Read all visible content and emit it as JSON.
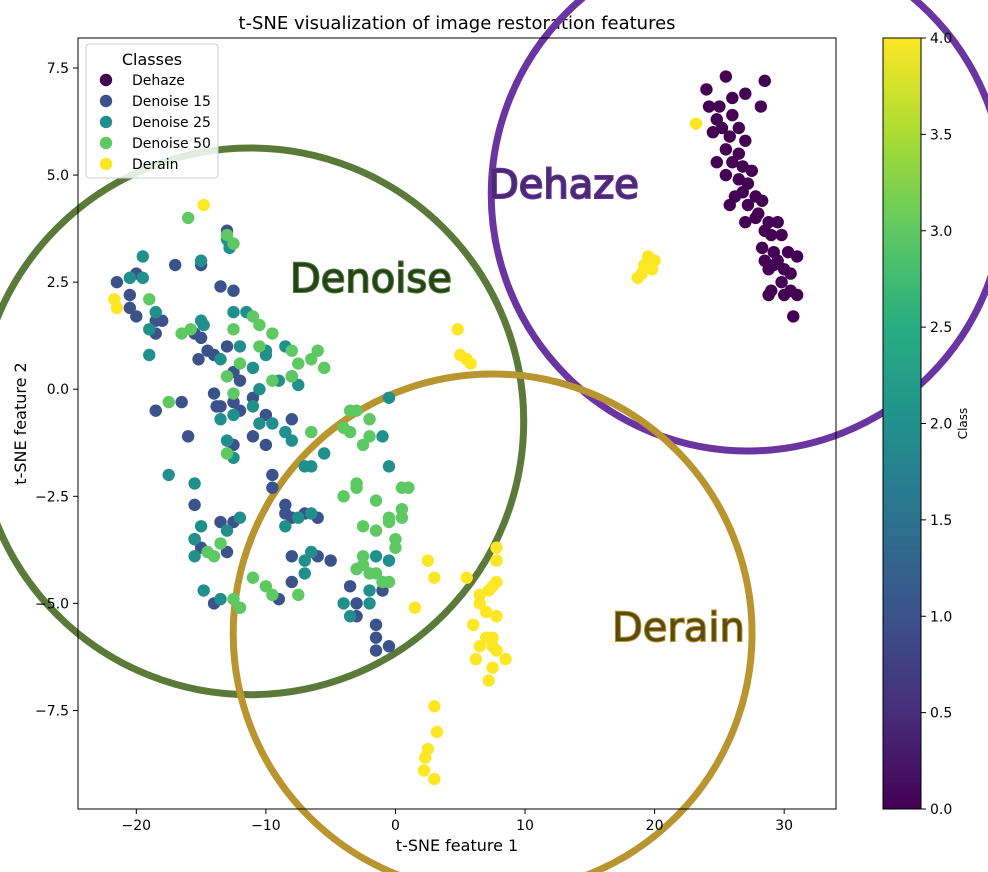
{
  "chart_data": {
    "type": "scatter",
    "title": "t-SNE visualization of image restoration features",
    "xlabel": "t-SNE feature 1",
    "ylabel": "t-SNE feature 2",
    "xlim": [
      -24.5,
      34
    ],
    "ylim": [
      -9.8,
      8.2
    ],
    "x_ticks": [
      -20,
      -10,
      0,
      10,
      20,
      30
    ],
    "y_ticks": [
      -7.5,
      -5.0,
      -2.5,
      0.0,
      2.5,
      5.0,
      7.5
    ],
    "x_tick_labels": [
      "−20",
      "−10",
      "0",
      "10",
      "20",
      "30"
    ],
    "y_tick_labels": [
      "−7.5",
      "−5.0",
      "−2.5",
      "0.0",
      "2.5",
      "5.0",
      "7.5"
    ],
    "legend": {
      "title": "Classes",
      "position": "top-left",
      "entries": [
        "Dehaze",
        "Denoise 15",
        "Denoise 25",
        "Denoise 50",
        "Derain"
      ]
    },
    "colorbar": {
      "label": "Class",
      "range": [
        0.0,
        4.0
      ],
      "ticks": [
        "0.0",
        "0.5",
        "1.0",
        "1.5",
        "2.0",
        "2.5",
        "3.0",
        "3.5",
        "4.0"
      ],
      "colormap": "viridis"
    },
    "grid": false,
    "series": [
      {
        "name": "Dehaze",
        "color": "#440154",
        "points": [
          [
            24.0,
            7.0
          ],
          [
            25.5,
            7.3
          ],
          [
            28.5,
            7.2
          ],
          [
            26.0,
            6.8
          ],
          [
            27.0,
            6.9
          ],
          [
            24.2,
            6.6
          ],
          [
            25.0,
            6.6
          ],
          [
            28.2,
            6.6
          ],
          [
            24.8,
            6.3
          ],
          [
            26.0,
            6.4
          ],
          [
            25.2,
            6.1
          ],
          [
            26.5,
            6.1
          ],
          [
            24.5,
            6.0
          ],
          [
            25.8,
            5.9
          ],
          [
            27.0,
            5.8
          ],
          [
            25.5,
            5.6
          ],
          [
            26.5,
            5.5
          ],
          [
            24.8,
            5.3
          ],
          [
            26.0,
            5.3
          ],
          [
            26.8,
            5.2
          ],
          [
            27.5,
            5.1
          ],
          [
            25.5,
            5.0
          ],
          [
            26.5,
            4.9
          ],
          [
            27.2,
            4.8
          ],
          [
            26.8,
            4.6
          ],
          [
            27.8,
            4.5
          ],
          [
            26.2,
            4.5
          ],
          [
            28.3,
            4.4
          ],
          [
            25.8,
            4.3
          ],
          [
            27.2,
            4.3
          ],
          [
            28.0,
            4.1
          ],
          [
            27.8,
            4.0
          ],
          [
            27.0,
            3.9
          ],
          [
            28.8,
            3.9
          ],
          [
            29.5,
            3.9
          ],
          [
            28.5,
            3.7
          ],
          [
            29.0,
            3.6
          ],
          [
            29.8,
            3.6
          ],
          [
            28.3,
            3.3
          ],
          [
            29.2,
            3.2
          ],
          [
            30.3,
            3.2
          ],
          [
            28.5,
            3.0
          ],
          [
            29.5,
            3.0
          ],
          [
            31.0,
            3.1
          ],
          [
            29.2,
            2.9
          ],
          [
            30.0,
            2.8
          ],
          [
            28.8,
            2.8
          ],
          [
            30.5,
            2.7
          ],
          [
            29.8,
            2.5
          ],
          [
            29.0,
            2.3
          ],
          [
            30.0,
            2.2
          ],
          [
            31.0,
            2.2
          ],
          [
            30.5,
            2.3
          ],
          [
            30.7,
            1.7
          ],
          [
            28.8,
            2.2
          ]
        ]
      },
      {
        "name": "Denoise 15",
        "color": "#3b528b",
        "points": [
          [
            -20.0,
            2.7
          ],
          [
            -20.5,
            2.2
          ],
          [
            -21.5,
            2.5
          ],
          [
            -20.0,
            1.7
          ],
          [
            -20.5,
            1.9
          ],
          [
            -18.5,
            1.6
          ],
          [
            -18.0,
            1.6
          ],
          [
            -18.5,
            1.3
          ],
          [
            -17.0,
            2.9
          ],
          [
            -15.0,
            2.9
          ],
          [
            -13.0,
            3.7
          ],
          [
            -12.8,
            3.4
          ],
          [
            -13.5,
            2.4
          ],
          [
            -12.5,
            2.3
          ],
          [
            -15.5,
            1.3
          ],
          [
            -15.0,
            1.2
          ],
          [
            -14.5,
            0.9
          ],
          [
            -15.2,
            0.7
          ],
          [
            -14.0,
            0.8
          ],
          [
            -13.0,
            1.0
          ],
          [
            -12.5,
            0.4
          ],
          [
            -12.0,
            0.2
          ],
          [
            -14.0,
            -0.1
          ],
          [
            -13.8,
            -0.4
          ],
          [
            -13.5,
            -0.4
          ],
          [
            -12.5,
            -0.3
          ],
          [
            -11.0,
            -0.2
          ],
          [
            -10.0,
            -0.6
          ],
          [
            -8.0,
            -0.7
          ],
          [
            -12.0,
            -0.5
          ],
          [
            -16.5,
            -0.3
          ],
          [
            -18.5,
            -0.5
          ],
          [
            -16.0,
            -1.1
          ],
          [
            -12.5,
            -1.3
          ],
          [
            -11.0,
            -1.1
          ],
          [
            -10.0,
            -1.3
          ],
          [
            -9.5,
            -2.0
          ],
          [
            -9.5,
            -2.3
          ],
          [
            -8.5,
            -2.7
          ],
          [
            -7.0,
            -2.9
          ],
          [
            -6.0,
            -3.0
          ],
          [
            -8.5,
            -2.9
          ],
          [
            -8.0,
            -3.0
          ],
          [
            -12.5,
            -3.1
          ],
          [
            -13.5,
            -3.1
          ],
          [
            -15.5,
            -2.7
          ],
          [
            -15.5,
            -3.5
          ],
          [
            -15.0,
            -3.7
          ],
          [
            -13.0,
            -3.8
          ],
          [
            -8.0,
            -3.9
          ],
          [
            -6.0,
            -3.9
          ],
          [
            -5.0,
            -4.0
          ],
          [
            -8.0,
            -4.5
          ],
          [
            -9.0,
            -4.9
          ],
          [
            -14.0,
            -5.0
          ],
          [
            -3.5,
            -4.6
          ],
          [
            -3.0,
            -5.0
          ],
          [
            -1.0,
            -4.7
          ],
          [
            -3.0,
            -5.3
          ],
          [
            -1.5,
            -5.8
          ],
          [
            -1.5,
            -6.1
          ],
          [
            -1.5,
            -5.5
          ],
          [
            -0.5,
            -6.0
          ]
        ]
      },
      {
        "name": "Denoise 25",
        "color": "#21908d",
        "points": [
          [
            -19.5,
            3.1
          ],
          [
            -20.5,
            2.6
          ],
          [
            -19.5,
            2.6
          ],
          [
            -18.5,
            1.8
          ],
          [
            -19.0,
            1.4
          ],
          [
            -19.0,
            0.8
          ],
          [
            -15.0,
            3.0
          ],
          [
            -13.0,
            3.5
          ],
          [
            -12.8,
            3.3
          ],
          [
            -15.0,
            1.6
          ],
          [
            -14.8,
            1.5
          ],
          [
            -12.5,
            1.8
          ],
          [
            -13.5,
            0.7
          ],
          [
            -12.0,
            1.0
          ],
          [
            -11.5,
            1.8
          ],
          [
            -10.0,
            0.9
          ],
          [
            -8.5,
            1.0
          ],
          [
            -10.0,
            0.8
          ],
          [
            -11.0,
            0.5
          ],
          [
            -10.5,
            0.0
          ],
          [
            -9.0,
            0.2
          ],
          [
            -8.0,
            0.3
          ],
          [
            -7.5,
            0.1
          ],
          [
            -11.0,
            -0.4
          ],
          [
            -10.5,
            -0.8
          ],
          [
            -12.5,
            -0.6
          ],
          [
            -13.5,
            -0.7
          ],
          [
            -13.0,
            -1.2
          ],
          [
            -12.5,
            -1.6
          ],
          [
            -9.5,
            -0.8
          ],
          [
            -8.5,
            -1.0
          ],
          [
            -8.0,
            -1.2
          ],
          [
            -7.0,
            -1.8
          ],
          [
            -6.5,
            -1.8
          ],
          [
            -5.5,
            -1.5
          ],
          [
            -15.5,
            -2.2
          ],
          [
            -17.5,
            -2.0
          ],
          [
            -15.5,
            -3.5
          ],
          [
            -15.0,
            -3.2
          ],
          [
            -13.0,
            -3.3
          ],
          [
            -12.0,
            -3.0
          ],
          [
            -8.5,
            -3.2
          ],
          [
            -7.5,
            -3.0
          ],
          [
            -6.5,
            -2.9
          ],
          [
            -6.5,
            -3.8
          ],
          [
            -7.0,
            -4.0
          ],
          [
            -7.0,
            -4.3
          ],
          [
            -15.5,
            -3.9
          ],
          [
            -14.8,
            -4.7
          ],
          [
            -13.5,
            -4.9
          ],
          [
            -4.0,
            -5.0
          ],
          [
            -3.5,
            -5.3
          ],
          [
            -2.0,
            -5.0
          ],
          [
            -2.0,
            -4.7
          ],
          [
            -1.5,
            -3.9
          ],
          [
            -0.5,
            -4.0
          ],
          [
            -1.0,
            -1.1
          ],
          [
            -0.5,
            -1.8
          ],
          [
            -0.5,
            -0.2
          ]
        ]
      },
      {
        "name": "Denoise 50",
        "color": "#5ec962",
        "points": [
          [
            -16.0,
            4.0
          ],
          [
            -13.0,
            3.6
          ],
          [
            -12.5,
            3.4
          ],
          [
            -19.0,
            2.1
          ],
          [
            -16.5,
            1.3
          ],
          [
            -15.8,
            1.4
          ],
          [
            -12.5,
            1.4
          ],
          [
            -11.0,
            1.7
          ],
          [
            -10.5,
            1.5
          ],
          [
            -9.5,
            1.3
          ],
          [
            -10.5,
            1.0
          ],
          [
            -8.0,
            0.9
          ],
          [
            -7.5,
            0.6
          ],
          [
            -6.5,
            0.7
          ],
          [
            -6.0,
            0.9
          ],
          [
            -5.5,
            0.5
          ],
          [
            -12.0,
            0.6
          ],
          [
            -9.5,
            0.2
          ],
          [
            -8.0,
            0.3
          ],
          [
            -12.5,
            -0.1
          ],
          [
            -13.0,
            0.3
          ],
          [
            -17.5,
            -0.3
          ],
          [
            -13.0,
            -1.5
          ],
          [
            -6.5,
            -1.0
          ],
          [
            -4.0,
            -0.9
          ],
          [
            -3.5,
            -0.5
          ],
          [
            -3.0,
            -0.5
          ],
          [
            -2.0,
            -0.7
          ],
          [
            -2.5,
            -1.3
          ],
          [
            -3.5,
            -1.0
          ],
          [
            -2.0,
            -1.1
          ],
          [
            -3.0,
            -2.2
          ],
          [
            -4.0,
            -2.5
          ],
          [
            -3.0,
            -2.3
          ],
          [
            -2.5,
            -3.2
          ],
          [
            -1.5,
            -2.6
          ],
          [
            -1.5,
            -3.3
          ],
          [
            -0.5,
            -3.0
          ],
          [
            0.5,
            -2.3
          ],
          [
            0.5,
            -2.8
          ],
          [
            0.5,
            -3.0
          ],
          [
            -0.5,
            -3.1
          ],
          [
            0.0,
            -3.5
          ],
          [
            0.0,
            -3.7
          ],
          [
            -2.5,
            -3.9
          ],
          [
            -2.5,
            -4.1
          ],
          [
            -2.0,
            -4.3
          ],
          [
            -1.5,
            -4.3
          ],
          [
            -0.5,
            -4.5
          ],
          [
            -11.0,
            -4.4
          ],
          [
            -10.0,
            -4.6
          ],
          [
            -9.5,
            -4.8
          ],
          [
            -12.5,
            -4.9
          ],
          [
            -12.0,
            -5.1
          ],
          [
            -7.5,
            -4.8
          ],
          [
            -13.5,
            -3.6
          ],
          [
            -14.0,
            -3.9
          ],
          [
            -14.5,
            -3.8
          ],
          [
            1.0,
            -2.3
          ],
          [
            -1.0,
            -4.5
          ],
          [
            -3.0,
            -4.2
          ]
        ]
      },
      {
        "name": "Derain",
        "color": "#fde725",
        "points": [
          [
            -14.8,
            4.3
          ],
          [
            -21.7,
            2.1
          ],
          [
            -21.5,
            1.9
          ],
          [
            4.8,
            1.4
          ],
          [
            5.0,
            0.8
          ],
          [
            5.5,
            0.7
          ],
          [
            5.8,
            0.6
          ],
          [
            23.2,
            6.2
          ],
          [
            19.5,
            3.1
          ],
          [
            20.0,
            3.0
          ],
          [
            19.8,
            2.8
          ],
          [
            19.0,
            2.7
          ],
          [
            18.7,
            2.6
          ],
          [
            19.2,
            2.9
          ],
          [
            2.5,
            -4.0
          ],
          [
            3.0,
            -4.4
          ],
          [
            5.5,
            -4.4
          ],
          [
            6.5,
            -4.8
          ],
          [
            7.5,
            -4.6
          ],
          [
            7.8,
            -4.5
          ],
          [
            7.2,
            -4.7
          ],
          [
            6.5,
            -5.0
          ],
          [
            7.0,
            -5.2
          ],
          [
            7.8,
            -5.3
          ],
          [
            6.0,
            -5.5
          ],
          [
            7.0,
            -5.8
          ],
          [
            6.5,
            -6.0
          ],
          [
            7.5,
            -6.0
          ],
          [
            6.2,
            -6.3
          ],
          [
            7.8,
            -6.1
          ],
          [
            8.5,
            -6.3
          ],
          [
            7.5,
            -6.5
          ],
          [
            7.2,
            -6.8
          ],
          [
            7.8,
            -4.0
          ],
          [
            7.8,
            -3.7
          ],
          [
            1.5,
            -5.1
          ],
          [
            3.0,
            -7.4
          ],
          [
            3.2,
            -8.0
          ],
          [
            2.5,
            -8.4
          ],
          [
            2.3,
            -8.6
          ],
          [
            2.2,
            -8.9
          ],
          [
            3.0,
            -9.1
          ],
          [
            7.5,
            -5.8
          ]
        ]
      }
    ],
    "annotations": [
      {
        "text": "Denoise",
        "color": "#5b7a3a",
        "fill": "#22441a",
        "circle_center": [
          -11.2,
          -0.75
        ],
        "circle_radius": 9.8
      },
      {
        "text": "Dehaze",
        "color": "#6a35a0",
        "fill": "#4a2a70",
        "circle_center": [
          27.2,
          4.55
        ],
        "circle_radius": 9.2
      },
      {
        "text": "Derain",
        "color": "#b8952f",
        "fill": "#5a4a10",
        "circle_center": [
          7.5,
          -5.7
        ],
        "circle_radius": 9.3
      }
    ]
  }
}
